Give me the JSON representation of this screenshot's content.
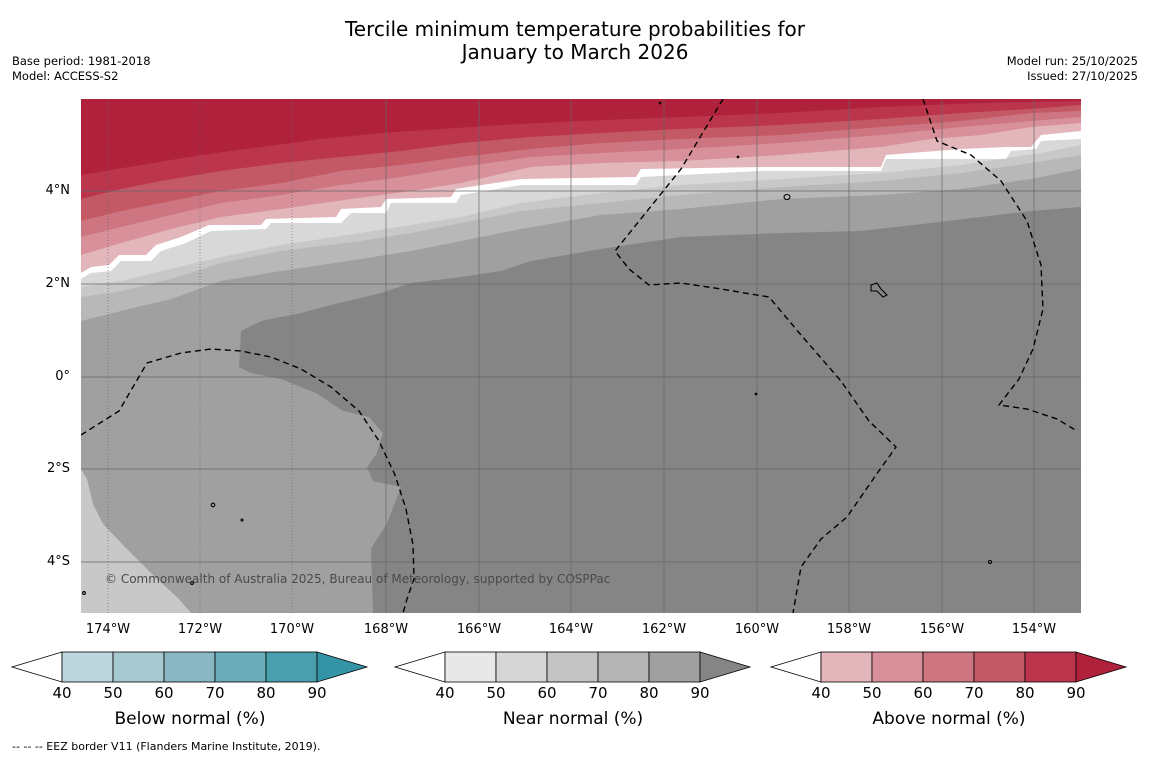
{
  "title": {
    "line1": "Tercile minimum temperature probabilities for",
    "line2": "January to March 2026"
  },
  "meta": {
    "base_period": "Base period: 1981-2018",
    "model": "Model: ACCESS-S2",
    "model_run": "Model run: 25/10/2025",
    "issued": "Issued: 27/10/2025"
  },
  "axes": {
    "lat_labels": [
      "4°N",
      "2°N",
      "0°",
      "2°S",
      "4°S"
    ],
    "lon_labels": [
      "174°W",
      "172°W",
      "170°W",
      "168°W",
      "166°W",
      "164°W",
      "162°W",
      "160°W",
      "158°W",
      "156°W",
      "154°W"
    ]
  },
  "map": {
    "copyright": "© Commonwealth of Australia 2025, Bureau of Meteorology, supported by COSPPac"
  },
  "colorbars": [
    {
      "name": "below",
      "title": "Below normal (%)",
      "ticks": [
        "40",
        "50",
        "60",
        "70",
        "80",
        "90"
      ],
      "colors": [
        "#ffffff",
        "#bdd5dc",
        "#a6c8cf",
        "#89b7c3",
        "#6aacb8",
        "#4a9fae",
        "#3593a6"
      ]
    },
    {
      "name": "near",
      "title": "Near normal (%)",
      "ticks": [
        "40",
        "50",
        "60",
        "70",
        "80",
        "90"
      ],
      "colors": [
        "#ffffff",
        "#e8e8e8",
        "#d6d6d6",
        "#c4c4c4",
        "#b4b4b4",
        "#a0a0a0",
        "#858585"
      ]
    },
    {
      "name": "above",
      "title": "Above normal (%)",
      "ticks": [
        "40",
        "50",
        "60",
        "70",
        "80",
        "90"
      ],
      "colors": [
        "#ffffff",
        "#e3b6bb",
        "#d8909a",
        "#cd7580",
        "#c45966",
        "#bb364c",
        "#b0213b"
      ]
    }
  ],
  "footer": "--  --  -- EEZ border V11 (Flanders Marine Institute, 2019)."
}
